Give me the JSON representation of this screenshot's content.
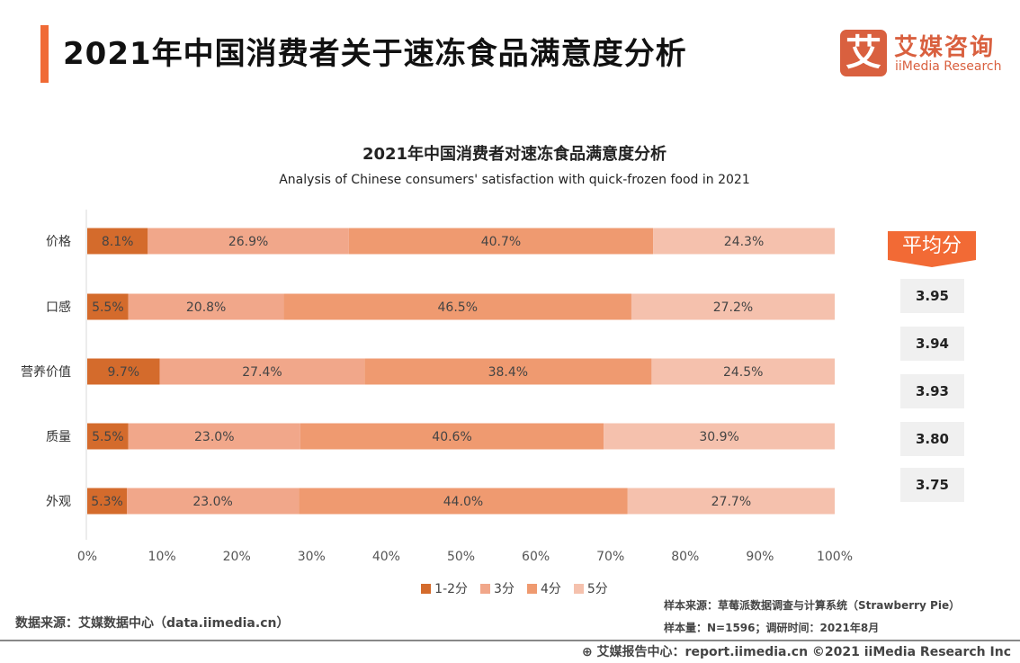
{
  "header": {
    "title": "2021年中国消费者关于速冻食品满意度分析",
    "logo_mark": "艾",
    "logo_cn": "艾媒咨询",
    "logo_en": "iiMedia Research"
  },
  "chart_data": {
    "type": "bar",
    "orientation": "horizontal",
    "stacked": "percent",
    "title": "2021年中国消费者对速冻食品满意度分析",
    "subtitle": "Analysis of Chinese consumers' satisfaction with quick-frozen food in 2021",
    "categories": [
      "价格",
      "口感",
      "营养价值",
      "质量",
      "外观"
    ],
    "series": [
      {
        "name": "1-2分",
        "color": "#d46b2c",
        "values": [
          8.1,
          5.5,
          9.7,
          5.5,
          5.3
        ]
      },
      {
        "name": "3分",
        "color": "#f1a78a",
        "values": [
          26.9,
          20.8,
          27.4,
          23.0,
          23.0
        ]
      },
      {
        "name": "4分",
        "color": "#ef9a70",
        "values": [
          40.7,
          46.5,
          38.4,
          40.6,
          44.0
        ]
      },
      {
        "name": "5分",
        "color": "#f5c1ad",
        "values": [
          24.3,
          27.2,
          24.5,
          30.9,
          27.7
        ]
      }
    ],
    "xlim": [
      0,
      100
    ],
    "xticks": [
      "0%",
      "10%",
      "20%",
      "30%",
      "40%",
      "50%",
      "60%",
      "70%",
      "80%",
      "90%",
      "100%"
    ],
    "legend": "bottom",
    "grid": false
  },
  "averages": {
    "title": "平均分",
    "values": [
      "3.95",
      "3.94",
      "3.93",
      "3.80",
      "3.75"
    ]
  },
  "footer": {
    "source": "数据来源：艾媒数据中心（data.iimedia.cn）",
    "sample_source": "样本来源：草莓派数据调查与计算系统（Strawberry Pie）",
    "sample_size": "样本量：N=1596；调研时间：2021年8月",
    "copyright": "⊕ 艾媒报告中心：report.iimedia.cn   ©2021  iiMedia Research  Inc"
  }
}
